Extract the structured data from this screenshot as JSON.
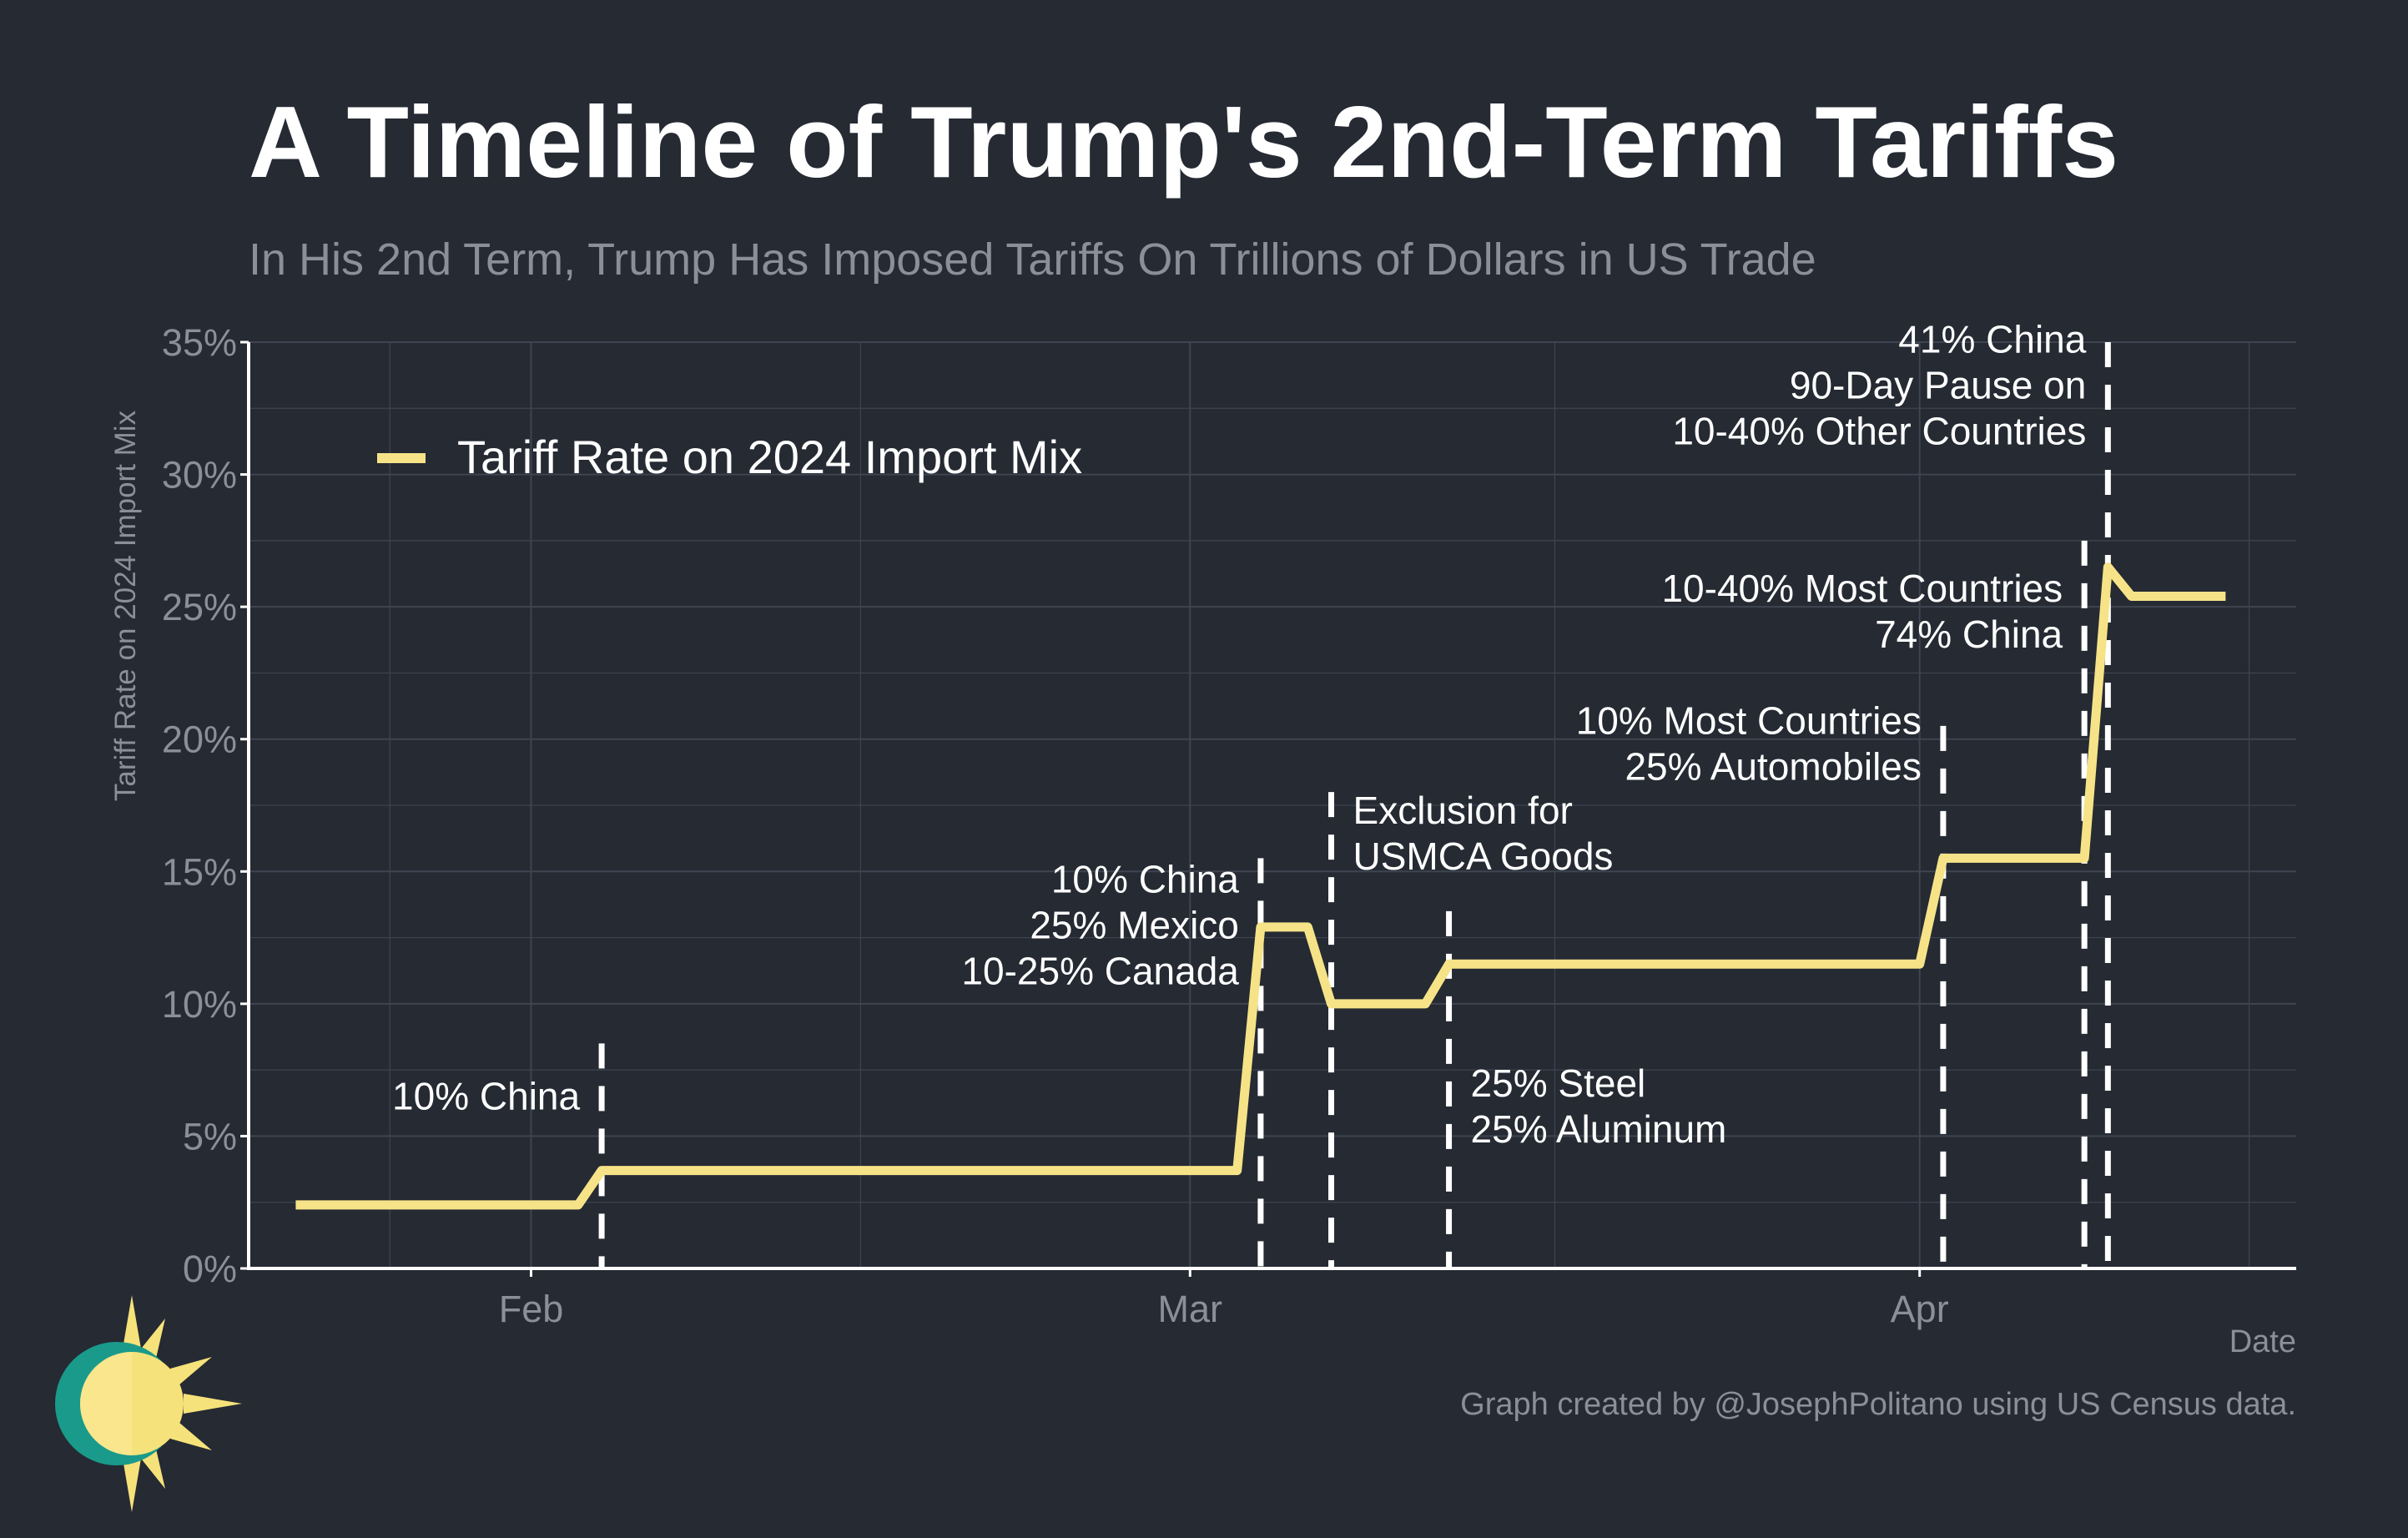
{
  "header": {
    "title": "A Timeline of Trump's 2nd-Term Tariffs",
    "subtitle": "In His 2nd Term, Trump Has Imposed Tariffs On Trillions of Dollars in US Trade"
  },
  "footer": {
    "credit": "Graph created by @JosephPolitano using US Census data."
  },
  "colors": {
    "background": "#252a33",
    "line": "#f6e388",
    "grid": "#3f4550",
    "axis": "#ffffff",
    "muted_text": "#8b8f97",
    "logo_teal": "#1a9a8a",
    "logo_yellow": "#f6e27a"
  },
  "icons": [
    "sun-logo-icon"
  ],
  "chart_data": {
    "type": "line",
    "title": "A Timeline of Trump's 2nd-Term Tariffs",
    "subtitle": "In His 2nd Term, Trump Has Imposed Tariffs On Trillions of Dollars in US Trade",
    "xlabel": "Date",
    "ylabel": "Tariff Rate on 2024 Import Mix",
    "x_type": "date",
    "xlim": [
      "2025-01-20",
      "2025-04-17"
    ],
    "ylim": [
      0,
      35
    ],
    "y_ticks": [
      0,
      5,
      10,
      15,
      20,
      25,
      30,
      35
    ],
    "y_tick_labels": [
      "0%",
      "5%",
      "10%",
      "15%",
      "20%",
      "25%",
      "30%",
      "35%"
    ],
    "x_ticks": [
      "2025-02-01",
      "2025-03-01",
      "2025-04-01"
    ],
    "x_tick_labels": [
      "Feb",
      "Mar",
      "Apr"
    ],
    "grid": true,
    "legend_position": "top-left",
    "series": [
      {
        "name": "Tariff Rate on 2024 Import Mix",
        "x": [
          "2025-01-22",
          "2025-02-03",
          "2025-02-04",
          "2025-03-03",
          "2025-03-04",
          "2025-03-05",
          "2025-03-06",
          "2025-03-07",
          "2025-03-11",
          "2025-03-12",
          "2025-04-01",
          "2025-04-02",
          "2025-04-07",
          "2025-04-08",
          "2025-04-09",
          "2025-04-10",
          "2025-04-13",
          "2025-04-14"
        ],
        "values": [
          2.4,
          2.4,
          3.7,
          3.7,
          12.9,
          12.9,
          12.9,
          10.0,
          10.0,
          11.5,
          11.5,
          15.5,
          15.5,
          15.5,
          26.5,
          25.4,
          25.4,
          25.4
        ]
      }
    ],
    "events": [
      {
        "date": "2025-02-04",
        "lines": [
          "10% China"
        ],
        "label_side": "left"
      },
      {
        "date": "2025-03-04",
        "lines": [
          "10% China",
          "25% Mexico",
          "10-25% Canada"
        ],
        "label_side": "left"
      },
      {
        "date": "2025-03-07",
        "lines": [
          "Exclusion for",
          "USMCA Goods"
        ],
        "label_side": "right"
      },
      {
        "date": "2025-03-12",
        "lines": [
          "25% Steel",
          "25% Aluminum"
        ],
        "label_side": "right"
      },
      {
        "date": "2025-04-02",
        "lines": [
          "10% Most Countries",
          "25% Automobiles"
        ],
        "label_side": "left"
      },
      {
        "date": "2025-04-08",
        "lines": [
          "10-40% Most Countries",
          "74% China"
        ],
        "label_side": "left"
      },
      {
        "date": "2025-04-09",
        "lines": [
          "41% China",
          "90-Day Pause on",
          "10-40% Other Countries"
        ],
        "label_side": "left"
      }
    ]
  }
}
